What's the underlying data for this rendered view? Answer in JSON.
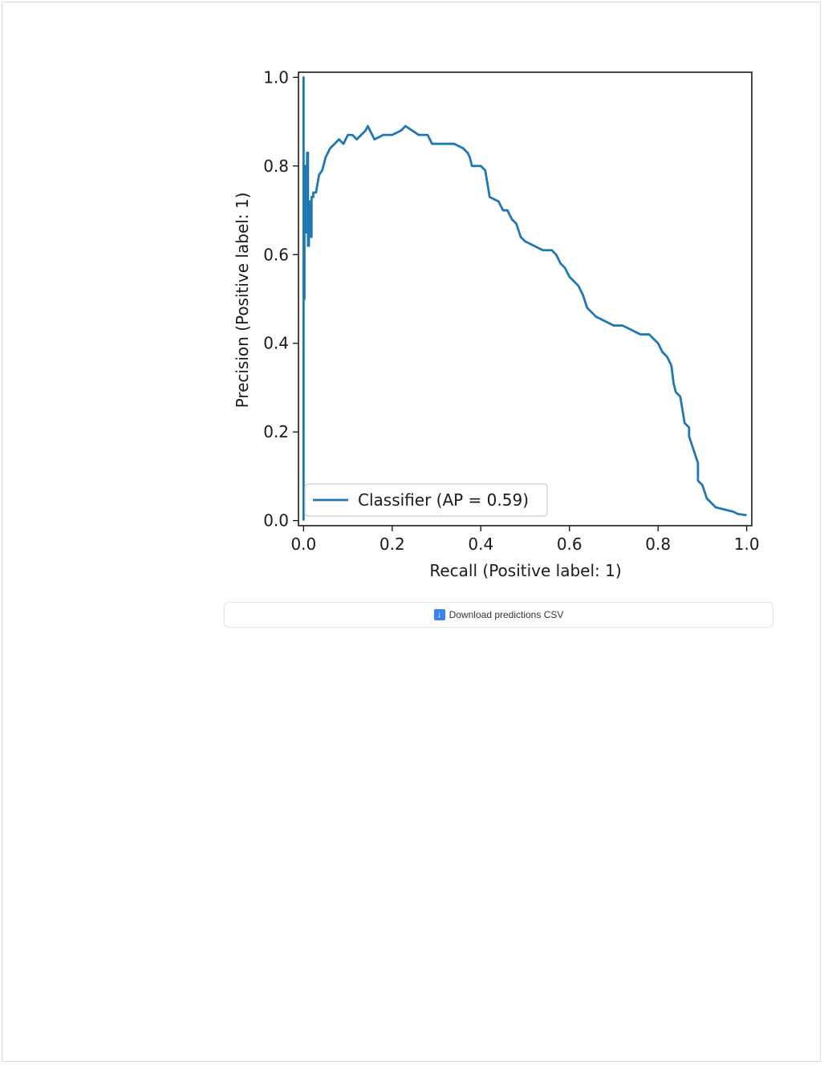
{
  "chart_data": {
    "type": "line",
    "xlabel": "Recall (Positive label: 1)",
    "ylabel": "Precision (Positive label: 1)",
    "xlim": [
      0.0,
      1.0
    ],
    "ylim": [
      0.0,
      1.0
    ],
    "xticks": [
      "0.0",
      "0.2",
      "0.4",
      "0.6",
      "0.8",
      "1.0"
    ],
    "yticks": [
      "0.0",
      "0.2",
      "0.4",
      "0.6",
      "0.8",
      "1.0"
    ],
    "grid": false,
    "legend_position": "lower-left",
    "series": [
      {
        "name": "Classifier (AP = 0.59)",
        "color": "#1f77b4",
        "x": [
          0.0,
          0.0,
          0.0,
          0.002,
          0.002,
          0.004,
          0.004,
          0.006,
          0.006,
          0.008,
          0.008,
          0.01,
          0.01,
          0.012,
          0.012,
          0.016,
          0.016,
          0.018,
          0.018,
          0.022,
          0.022,
          0.028,
          0.035,
          0.042,
          0.05,
          0.06,
          0.07,
          0.08,
          0.09,
          0.1,
          0.11,
          0.12,
          0.14,
          0.145,
          0.16,
          0.18,
          0.2,
          0.22,
          0.23,
          0.26,
          0.28,
          0.29,
          0.31,
          0.34,
          0.36,
          0.37,
          0.375,
          0.38,
          0.4,
          0.41,
          0.415,
          0.42,
          0.44,
          0.45,
          0.46,
          0.47,
          0.48,
          0.49,
          0.5,
          0.52,
          0.54,
          0.56,
          0.57,
          0.58,
          0.59,
          0.6,
          0.62,
          0.63,
          0.64,
          0.65,
          0.66,
          0.68,
          0.7,
          0.72,
          0.74,
          0.76,
          0.78,
          0.79,
          0.8,
          0.81,
          0.82,
          0.83,
          0.835,
          0.84,
          0.85,
          0.86,
          0.87,
          0.87,
          0.88,
          0.89,
          0.89,
          0.9,
          0.91,
          0.93,
          0.95,
          0.97,
          0.98,
          1.0
        ],
        "y": [
          0.0,
          1.0,
          0.5,
          0.5,
          0.68,
          0.68,
          0.8,
          0.8,
          0.65,
          0.65,
          0.83,
          0.83,
          0.62,
          0.62,
          0.72,
          0.72,
          0.64,
          0.64,
          0.73,
          0.73,
          0.74,
          0.74,
          0.78,
          0.79,
          0.82,
          0.84,
          0.85,
          0.86,
          0.85,
          0.87,
          0.87,
          0.86,
          0.88,
          0.89,
          0.86,
          0.87,
          0.87,
          0.88,
          0.89,
          0.87,
          0.87,
          0.85,
          0.85,
          0.85,
          0.84,
          0.83,
          0.82,
          0.8,
          0.8,
          0.79,
          0.76,
          0.73,
          0.72,
          0.7,
          0.7,
          0.68,
          0.67,
          0.64,
          0.63,
          0.62,
          0.61,
          0.61,
          0.6,
          0.58,
          0.57,
          0.55,
          0.53,
          0.51,
          0.48,
          0.47,
          0.46,
          0.45,
          0.44,
          0.44,
          0.43,
          0.42,
          0.42,
          0.41,
          0.4,
          0.38,
          0.37,
          0.35,
          0.31,
          0.29,
          0.28,
          0.22,
          0.21,
          0.19,
          0.16,
          0.13,
          0.09,
          0.08,
          0.05,
          0.03,
          0.025,
          0.02,
          0.015,
          0.012
        ]
      }
    ]
  },
  "download": {
    "icon": "download-arrow-icon",
    "label": "Download predictions CSV"
  }
}
